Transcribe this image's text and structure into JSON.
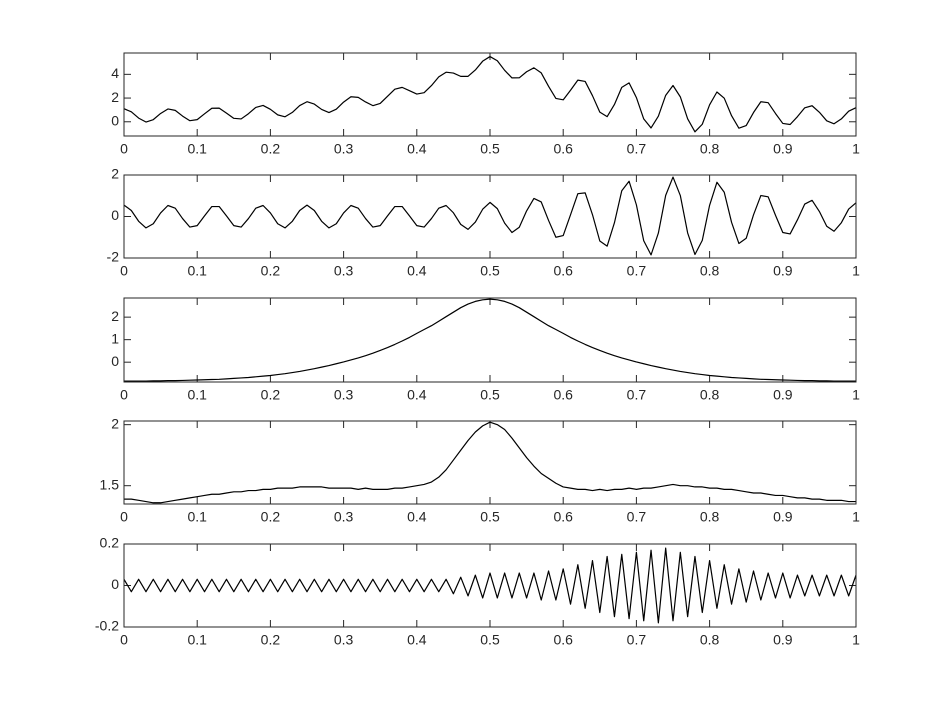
{
  "chart_data": [
    {
      "type": "line",
      "color": "#000000",
      "xlim": [
        0,
        1
      ],
      "ylim": [
        -1.2,
        5.8
      ],
      "xticks": [
        0,
        0.1,
        0.2,
        0.3,
        0.4,
        0.5,
        0.6,
        0.7,
        0.8,
        0.9,
        1
      ],
      "yticks": [
        0,
        2,
        4
      ],
      "x": [
        0,
        0.01,
        0.02,
        0.03,
        0.04,
        0.05,
        0.06,
        0.07,
        0.08,
        0.09,
        0.1,
        0.11,
        0.12,
        0.13,
        0.14,
        0.15,
        0.16,
        0.17,
        0.18,
        0.19,
        0.2,
        0.21,
        0.22,
        0.23,
        0.24,
        0.25,
        0.26,
        0.27,
        0.28,
        0.29,
        0.3,
        0.31,
        0.32,
        0.33,
        0.34,
        0.35,
        0.36,
        0.37,
        0.38,
        0.39,
        0.4,
        0.41,
        0.42,
        0.43,
        0.44,
        0.45,
        0.46,
        0.47,
        0.48,
        0.49,
        0.5,
        0.51,
        0.52,
        0.53,
        0.54,
        0.55,
        0.56,
        0.57,
        0.58,
        0.59,
        0.6,
        0.61,
        0.62,
        0.63,
        0.64,
        0.65,
        0.66,
        0.67,
        0.68,
        0.69,
        0.7,
        0.71,
        0.72,
        0.73,
        0.74,
        0.75,
        0.76,
        0.77,
        0.78,
        0.79,
        0.8,
        0.81,
        0.82,
        0.83,
        0.84,
        0.85,
        0.86,
        0.87,
        0.88,
        0.89,
        0.9,
        0.91,
        0.92,
        0.93,
        0.94,
        0.95,
        0.96,
        0.97,
        0.98,
        0.99,
        1
      ],
      "values": [
        1.1,
        0.84,
        0.31,
        -0.02,
        0.18,
        0.7,
        1.08,
        0.96,
        0.48,
        0.09,
        0.18,
        0.67,
        1.14,
        1.15,
        0.73,
        0.29,
        0.24,
        0.68,
        1.21,
        1.38,
        1.05,
        0.58,
        0.42,
        0.79,
        1.37,
        1.69,
        1.49,
        1.04,
        0.78,
        1.06,
        1.66,
        2.11,
        2.06,
        1.67,
        1.36,
        1.55,
        2.15,
        2.75,
        2.9,
        2.62,
        2.34,
        2.45,
        3.05,
        3.79,
        4.18,
        4.11,
        3.83,
        3.83,
        4.37,
        5.11,
        5.5,
        5.15,
        4.34,
        3.7,
        3.71,
        4.22,
        4.55,
        4.12,
        2.99,
        1.97,
        1.85,
        2.66,
        3.51,
        3.4,
        2.2,
        0.81,
        0.43,
        1.46,
        2.9,
        3.28,
        2.04,
        0.24,
        -0.52,
        0.47,
        2.23,
        3.06,
        2.1,
        0.25,
        -0.85,
        -0.21,
        1.43,
        2.51,
        1.99,
        0.51,
        -0.54,
        -0.32,
        0.78,
        1.69,
        1.61,
        0.7,
        -0.14,
        -0.23,
        0.43,
        1.18,
        1.35,
        0.8,
        0.08,
        -0.17,
        0.24,
        0.89,
        1.19
      ]
    },
    {
      "type": "line",
      "color": "#000000",
      "xlim": [
        0,
        1
      ],
      "ylim": [
        -2,
        2
      ],
      "xticks": [
        0,
        0.1,
        0.2,
        0.3,
        0.4,
        0.5,
        0.6,
        0.7,
        0.8,
        0.9,
        1
      ],
      "yticks": [
        -2,
        0,
        2
      ],
      "x": [
        0,
        0.01,
        0.02,
        0.03,
        0.04,
        0.05,
        0.06,
        0.07,
        0.08,
        0.09,
        0.1,
        0.11,
        0.12,
        0.13,
        0.14,
        0.15,
        0.16,
        0.17,
        0.18,
        0.19,
        0.2,
        0.21,
        0.22,
        0.23,
        0.24,
        0.25,
        0.26,
        0.27,
        0.28,
        0.29,
        0.3,
        0.31,
        0.32,
        0.33,
        0.34,
        0.35,
        0.36,
        0.37,
        0.38,
        0.39,
        0.4,
        0.41,
        0.42,
        0.43,
        0.44,
        0.45,
        0.46,
        0.47,
        0.48,
        0.49,
        0.5,
        0.51,
        0.52,
        0.53,
        0.54,
        0.55,
        0.56,
        0.57,
        0.58,
        0.59,
        0.6,
        0.61,
        0.62,
        0.63,
        0.64,
        0.65,
        0.66,
        0.67,
        0.68,
        0.69,
        0.7,
        0.71,
        0.72,
        0.73,
        0.74,
        0.75,
        0.76,
        0.77,
        0.78,
        0.79,
        0.8,
        0.81,
        0.82,
        0.83,
        0.84,
        0.85,
        0.86,
        0.87,
        0.88,
        0.89,
        0.9,
        0.91,
        0.92,
        0.93,
        0.94,
        0.95,
        0.96,
        0.97,
        0.98,
        0.99,
        1
      ],
      "values": [
        0.55,
        0.29,
        -0.23,
        -0.55,
        -0.35,
        0.17,
        0.53,
        0.4,
        -0.1,
        -0.51,
        -0.44,
        0.03,
        0.48,
        0.48,
        0.03,
        -0.44,
        -0.51,
        -0.1,
        0.4,
        0.53,
        0.17,
        -0.35,
        -0.55,
        -0.23,
        0.29,
        0.55,
        0.29,
        -0.23,
        -0.55,
        -0.35,
        0.17,
        0.53,
        0.4,
        -0.1,
        -0.51,
        -0.44,
        0.03,
        0.48,
        0.48,
        0.03,
        -0.44,
        -0.51,
        -0.1,
        0.4,
        0.53,
        0.18,
        -0.38,
        -0.62,
        -0.27,
        0.35,
        0.68,
        0.38,
        -0.32,
        -0.77,
        -0.52,
        0.27,
        0.87,
        0.7,
        -0.19,
        -1.0,
        -0.92,
        0.08,
        1.1,
        1.14,
        0.09,
        -1.18,
        -1.43,
        -0.3,
        1.24,
        1.7,
        0.56,
        -1.17,
        -1.85,
        -0.8,
        1.02,
        1.9,
        1.01,
        -0.79,
        -1.83,
        -1.15,
        0.54,
        1.65,
        1.17,
        -0.28,
        -1.3,
        -1.05,
        0.08,
        1.01,
        0.95,
        0.06,
        -0.77,
        -0.84,
        -0.16,
        0.6,
        0.78,
        0.24,
        -0.47,
        -0.71,
        -0.3,
        0.36,
        0.66
      ]
    },
    {
      "type": "line",
      "color": "#000000",
      "xlim": [
        0,
        1
      ],
      "ylim": [
        -0.88,
        2.85
      ],
      "xticks": [
        0,
        0.1,
        0.2,
        0.3,
        0.4,
        0.5,
        0.6,
        0.7,
        0.8,
        0.9,
        1
      ],
      "yticks": [
        0,
        1,
        2
      ],
      "x": [
        0,
        0.01,
        0.02,
        0.03,
        0.04,
        0.05,
        0.06,
        0.07,
        0.08,
        0.09,
        0.1,
        0.11,
        0.12,
        0.13,
        0.14,
        0.15,
        0.16,
        0.17,
        0.18,
        0.19,
        0.2,
        0.21,
        0.22,
        0.23,
        0.24,
        0.25,
        0.26,
        0.27,
        0.28,
        0.29,
        0.3,
        0.31,
        0.32,
        0.33,
        0.34,
        0.35,
        0.36,
        0.37,
        0.38,
        0.39,
        0.4,
        0.41,
        0.42,
        0.43,
        0.44,
        0.45,
        0.46,
        0.47,
        0.48,
        0.49,
        0.5,
        0.51,
        0.52,
        0.53,
        0.54,
        0.55,
        0.56,
        0.57,
        0.58,
        0.59,
        0.6,
        0.61,
        0.62,
        0.63,
        0.64,
        0.65,
        0.66,
        0.67,
        0.68,
        0.69,
        0.7,
        0.71,
        0.72,
        0.73,
        0.74,
        0.75,
        0.76,
        0.77,
        0.78,
        0.79,
        0.8,
        0.81,
        0.82,
        0.83,
        0.84,
        0.85,
        0.86,
        0.87,
        0.88,
        0.89,
        0.9,
        0.91,
        0.92,
        0.93,
        0.94,
        0.95,
        0.96,
        0.97,
        0.98,
        0.99,
        1
      ],
      "values": [
        -0.84,
        -0.84,
        -0.84,
        -0.84,
        -0.83,
        -0.83,
        -0.82,
        -0.82,
        -0.81,
        -0.8,
        -0.79,
        -0.78,
        -0.77,
        -0.76,
        -0.74,
        -0.72,
        -0.7,
        -0.68,
        -0.65,
        -0.62,
        -0.59,
        -0.55,
        -0.51,
        -0.46,
        -0.41,
        -0.35,
        -0.29,
        -0.22,
        -0.15,
        -0.07,
        0.01,
        0.1,
        0.19,
        0.29,
        0.4,
        0.52,
        0.65,
        0.79,
        0.94,
        1.1,
        1.28,
        1.45,
        1.62,
        1.82,
        2.02,
        2.22,
        2.42,
        2.58,
        2.7,
        2.77,
        2.8,
        2.77,
        2.7,
        2.58,
        2.42,
        2.22,
        2.02,
        1.82,
        1.62,
        1.45,
        1.28,
        1.1,
        0.94,
        0.79,
        0.65,
        0.52,
        0.4,
        0.29,
        0.19,
        0.1,
        0.01,
        -0.07,
        -0.15,
        -0.22,
        -0.29,
        -0.35,
        -0.41,
        -0.46,
        -0.51,
        -0.55,
        -0.59,
        -0.62,
        -0.65,
        -0.68,
        -0.7,
        -0.72,
        -0.74,
        -0.76,
        -0.77,
        -0.78,
        -0.79,
        -0.8,
        -0.81,
        -0.82,
        -0.82,
        -0.83,
        -0.83,
        -0.84,
        -0.84,
        -0.84,
        -0.84
      ]
    },
    {
      "type": "line",
      "color": "#000000",
      "xlim": [
        0,
        1
      ],
      "ylim": [
        1.35,
        2.03
      ],
      "xticks": [
        0,
        0.1,
        0.2,
        0.3,
        0.4,
        0.5,
        0.6,
        0.7,
        0.8,
        0.9,
        1
      ],
      "yticks": [
        1.5,
        2
      ],
      "x": [
        0,
        0.01,
        0.02,
        0.03,
        0.04,
        0.05,
        0.06,
        0.07,
        0.08,
        0.09,
        0.1,
        0.11,
        0.12,
        0.13,
        0.14,
        0.15,
        0.16,
        0.17,
        0.18,
        0.19,
        0.2,
        0.21,
        0.22,
        0.23,
        0.24,
        0.25,
        0.26,
        0.27,
        0.28,
        0.29,
        0.3,
        0.31,
        0.32,
        0.33,
        0.34,
        0.35,
        0.36,
        0.37,
        0.38,
        0.39,
        0.4,
        0.41,
        0.42,
        0.43,
        0.44,
        0.45,
        0.46,
        0.47,
        0.48,
        0.49,
        0.5,
        0.51,
        0.52,
        0.53,
        0.54,
        0.55,
        0.56,
        0.57,
        0.58,
        0.59,
        0.6,
        0.61,
        0.62,
        0.63,
        0.64,
        0.65,
        0.66,
        0.67,
        0.68,
        0.69,
        0.7,
        0.71,
        0.72,
        0.73,
        0.74,
        0.75,
        0.76,
        0.77,
        0.78,
        0.79,
        0.8,
        0.81,
        0.82,
        0.83,
        0.84,
        0.85,
        0.86,
        0.87,
        0.88,
        0.89,
        0.9,
        0.91,
        0.92,
        0.93,
        0.94,
        0.95,
        0.96,
        0.97,
        0.98,
        0.99,
        1
      ],
      "values": [
        1.39,
        1.39,
        1.38,
        1.37,
        1.36,
        1.36,
        1.37,
        1.38,
        1.39,
        1.4,
        1.41,
        1.42,
        1.43,
        1.43,
        1.44,
        1.45,
        1.45,
        1.46,
        1.46,
        1.47,
        1.47,
        1.48,
        1.48,
        1.48,
        1.49,
        1.49,
        1.49,
        1.49,
        1.48,
        1.48,
        1.48,
        1.48,
        1.47,
        1.48,
        1.47,
        1.47,
        1.47,
        1.48,
        1.48,
        1.49,
        1.5,
        1.51,
        1.53,
        1.57,
        1.63,
        1.71,
        1.79,
        1.87,
        1.94,
        1.99,
        2.02,
        2.0,
        1.96,
        1.89,
        1.81,
        1.73,
        1.66,
        1.6,
        1.56,
        1.52,
        1.49,
        1.48,
        1.47,
        1.47,
        1.46,
        1.47,
        1.46,
        1.47,
        1.47,
        1.48,
        1.47,
        1.48,
        1.48,
        1.49,
        1.5,
        1.51,
        1.5,
        1.5,
        1.49,
        1.49,
        1.48,
        1.48,
        1.47,
        1.47,
        1.46,
        1.45,
        1.44,
        1.44,
        1.43,
        1.42,
        1.42,
        1.41,
        1.4,
        1.4,
        1.39,
        1.39,
        1.38,
        1.38,
        1.38,
        1.37,
        1.37
      ]
    },
    {
      "type": "line",
      "color": "#000000",
      "xlim": [
        0,
        1
      ],
      "ylim": [
        -0.2,
        0.2
      ],
      "xticks": [
        0,
        0.1,
        0.2,
        0.3,
        0.4,
        0.5,
        0.6,
        0.7,
        0.8,
        0.9,
        1
      ],
      "yticks": [
        -0.2,
        0,
        0.2
      ],
      "x": [
        0,
        0.01,
        0.02,
        0.03,
        0.04,
        0.05,
        0.06,
        0.07,
        0.08,
        0.09,
        0.1,
        0.11,
        0.12,
        0.13,
        0.14,
        0.15,
        0.16,
        0.17,
        0.18,
        0.19,
        0.2,
        0.21,
        0.22,
        0.23,
        0.24,
        0.25,
        0.26,
        0.27,
        0.28,
        0.29,
        0.3,
        0.31,
        0.32,
        0.33,
        0.34,
        0.35,
        0.36,
        0.37,
        0.38,
        0.39,
        0.4,
        0.41,
        0.42,
        0.43,
        0.44,
        0.45,
        0.46,
        0.47,
        0.48,
        0.49,
        0.5,
        0.51,
        0.52,
        0.53,
        0.54,
        0.55,
        0.56,
        0.57,
        0.58,
        0.59,
        0.6,
        0.61,
        0.62,
        0.63,
        0.64,
        0.65,
        0.66,
        0.67,
        0.68,
        0.69,
        0.7,
        0.71,
        0.72,
        0.73,
        0.74,
        0.75,
        0.76,
        0.77,
        0.78,
        0.79,
        0.8,
        0.81,
        0.82,
        0.83,
        0.84,
        0.85,
        0.86,
        0.87,
        0.88,
        0.89,
        0.9,
        0.91,
        0.92,
        0.93,
        0.94,
        0.95,
        0.96,
        0.97,
        0.98,
        0.99,
        1
      ],
      "values": [
        0.03,
        -0.03,
        0.03,
        -0.03,
        0.03,
        -0.03,
        0.03,
        -0.03,
        0.03,
        -0.03,
        0.03,
        -0.03,
        0.03,
        -0.03,
        0.03,
        -0.03,
        0.03,
        -0.03,
        0.03,
        -0.03,
        0.03,
        -0.03,
        0.03,
        -0.03,
        0.03,
        -0.03,
        0.03,
        -0.03,
        0.03,
        -0.03,
        0.03,
        -0.03,
        0.03,
        -0.03,
        0.03,
        -0.03,
        0.03,
        -0.03,
        0.03,
        -0.03,
        0.03,
        -0.03,
        0.03,
        -0.03,
        0.03,
        -0.04,
        0.04,
        -0.05,
        0.05,
        -0.06,
        0.06,
        -0.06,
        0.06,
        -0.06,
        0.06,
        -0.06,
        0.06,
        -0.07,
        0.07,
        -0.07,
        0.08,
        -0.09,
        0.1,
        -0.11,
        0.12,
        -0.13,
        0.14,
        -0.15,
        0.15,
        -0.16,
        0.16,
        -0.17,
        0.17,
        -0.18,
        0.18,
        -0.17,
        0.16,
        -0.15,
        0.14,
        -0.13,
        0.12,
        -0.11,
        0.1,
        -0.09,
        0.08,
        -0.08,
        0.07,
        -0.07,
        0.06,
        -0.06,
        0.06,
        -0.06,
        0.05,
        -0.05,
        0.05,
        -0.05,
        0.05,
        -0.05,
        0.05,
        -0.05,
        0.05
      ]
    }
  ]
}
